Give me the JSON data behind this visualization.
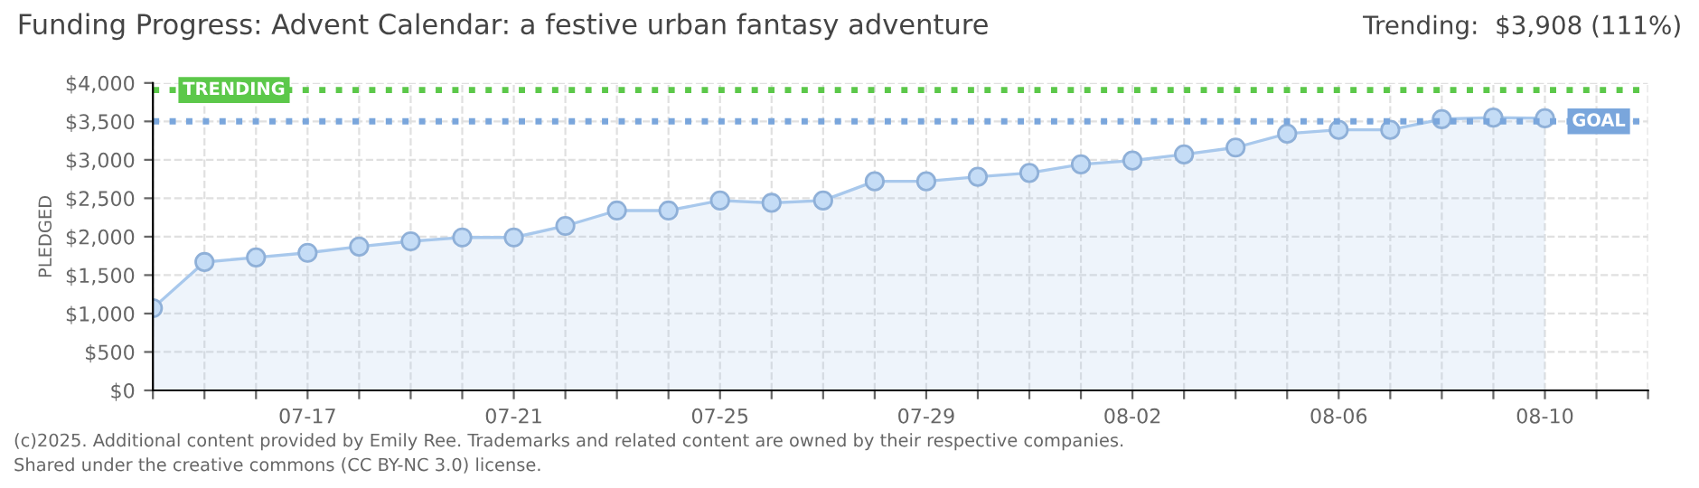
{
  "chart_data": {
    "type": "area",
    "title": "Funding Progress: Advent Calendar: a festive urban fantasy adventure",
    "ylabel": "PLEDGED",
    "annotations": [
      "Trending:  $3,908 (111%)",
      "(c)2025. Additional content provided by Emily Ree. Trademarks and related content are owned by their respective companies.",
      "Shared under the creative commons (CC BY-NC 3.0) license."
    ],
    "x": [
      "2025-07-14",
      "2025-07-15",
      "2025-07-16",
      "2025-07-17",
      "2025-07-18",
      "2025-07-19",
      "2025-07-20",
      "2025-07-21",
      "2025-07-22",
      "2025-07-23",
      "2025-07-24",
      "2025-07-25",
      "2025-07-26",
      "2025-07-27",
      "2025-07-28",
      "2025-07-29",
      "2025-07-30",
      "2025-07-31",
      "2025-08-01",
      "2025-08-02",
      "2025-08-03",
      "2025-08-04",
      "2025-08-05",
      "2025-08-06",
      "2025-08-07",
      "2025-08-08",
      "2025-08-09",
      "2025-08-10"
    ],
    "series": [
      {
        "color": "#a8c8ec",
        "values": [
          1070,
          1670,
          1730,
          1790,
          1870,
          1940,
          1990,
          1990,
          2140,
          2340,
          2340,
          2470,
          2440,
          2470,
          2720,
          2720,
          2780,
          2830,
          2940,
          2990,
          3070,
          3160,
          3340,
          3390,
          3390,
          3530,
          3550,
          3540
        ]
      }
    ],
    "xlim": [
      "2025-07-14",
      "2025-08-12"
    ],
    "xticks": [
      {
        "value": "2025-07-14",
        "label": null
      },
      {
        "value": "2025-07-15",
        "label": null
      },
      {
        "value": "2025-07-16",
        "label": null
      },
      {
        "value": "2025-07-17",
        "label": "07-17"
      },
      {
        "value": "2025-07-18",
        "label": null
      },
      {
        "value": "2025-07-19",
        "label": null
      },
      {
        "value": "2025-07-20",
        "label": null
      },
      {
        "value": "2025-07-21",
        "label": "07-21"
      },
      {
        "value": "2025-07-22",
        "label": null
      },
      {
        "value": "2025-07-23",
        "label": null
      },
      {
        "value": "2025-07-24",
        "label": null
      },
      {
        "value": "2025-07-25",
        "label": "07-25"
      },
      {
        "value": "2025-07-26",
        "label": null
      },
      {
        "value": "2025-07-27",
        "label": null
      },
      {
        "value": "2025-07-28",
        "label": null
      },
      {
        "value": "2025-07-29",
        "label": "07-29"
      },
      {
        "value": "2025-07-30",
        "label": null
      },
      {
        "value": "2025-07-31",
        "label": null
      },
      {
        "value": "2025-08-01",
        "label": null
      },
      {
        "value": "2025-08-02",
        "label": "08-02"
      },
      {
        "value": "2025-08-03",
        "label": null
      },
      {
        "value": "2025-08-04",
        "label": null
      },
      {
        "value": "2025-08-05",
        "label": null
      },
      {
        "value": "2025-08-06",
        "label": "08-06"
      },
      {
        "value": "2025-08-07",
        "label": null
      },
      {
        "value": "2025-08-08",
        "label": null
      },
      {
        "value": "2025-08-09",
        "label": null
      },
      {
        "value": "2025-08-10",
        "label": "08-10"
      },
      {
        "value": "2025-08-11",
        "label": null
      },
      {
        "value": "2025-08-12",
        "label": null
      }
    ],
    "ylim": [
      0,
      4000
    ],
    "yticks": [
      {
        "value": 0,
        "label": "$0"
      },
      {
        "value": 500,
        "label": "$500"
      },
      {
        "value": 1000,
        "label": "$1,000"
      },
      {
        "value": 1500,
        "label": "$1,500"
      },
      {
        "value": 2000,
        "label": "$2,000"
      },
      {
        "value": 2500,
        "label": "$2,500"
      },
      {
        "value": 3000,
        "label": "$3,000"
      },
      {
        "value": 3500,
        "label": "$3,500"
      },
      {
        "value": 4000,
        "label": "$4,000"
      }
    ],
    "ref_lines": [
      {
        "axis": "y",
        "value": 3908,
        "label": "TRENDING",
        "color": "#5cc84a",
        "line_style": "dotted"
      },
      {
        "axis": "y",
        "value": 3500,
        "label": "GOAL",
        "color": "#7aa6dc",
        "line_style": "dotted"
      }
    ],
    "grid": true,
    "marker": "circle",
    "legend": false
  }
}
